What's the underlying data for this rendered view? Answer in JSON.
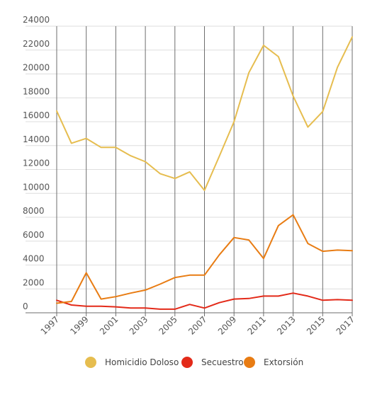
{
  "chart_data": {
    "type": "line",
    "title": "",
    "xlabel": "",
    "ylabel": "",
    "x": [
      1997,
      1998,
      1999,
      2000,
      2001,
      2002,
      2003,
      2004,
      2005,
      2006,
      2007,
      2008,
      2009,
      2010,
      2011,
      2012,
      2013,
      2014,
      2015,
      2016,
      2017
    ],
    "x_tick_labels": [
      "1997",
      "1999",
      "2001",
      "2003",
      "2005",
      "2007",
      "2009",
      "2011",
      "2013",
      "2015",
      "2017"
    ],
    "y_tick_labels": [
      "0",
      "2000",
      "4000",
      "6000",
      "8000",
      "10000",
      "12000",
      "14000",
      "16000",
      "18000",
      "20000",
      "22000",
      "24000"
    ],
    "ylim": [
      0,
      24000
    ],
    "grid": true,
    "legend_position": "bottom",
    "series": [
      {
        "name": "Homicidio Doloso",
        "color": "#e6bd4f",
        "values": [
          16900,
          14200,
          14600,
          13850,
          13850,
          13150,
          12650,
          11650,
          11250,
          11800,
          10250,
          13100,
          16000,
          20100,
          22400,
          21450,
          18150,
          15550,
          16850,
          20550,
          23100
        ]
      },
      {
        "name": "Secuestro",
        "color": "#e32a19",
        "values": [
          1050,
          650,
          550,
          550,
          500,
          400,
          400,
          300,
          300,
          700,
          400,
          850,
          1150,
          1200,
          1400,
          1400,
          1650,
          1400,
          1050,
          1100,
          1050
        ]
      },
      {
        "name": "Extorsión",
        "color": "#e87c13",
        "values": [
          800,
          950,
          3350,
          1150,
          1350,
          1650,
          1900,
          2400,
          2950,
          3150,
          3150,
          4850,
          6300,
          6100,
          4550,
          7300,
          8200,
          5800,
          5150,
          5250,
          5200
        ]
      }
    ]
  }
}
